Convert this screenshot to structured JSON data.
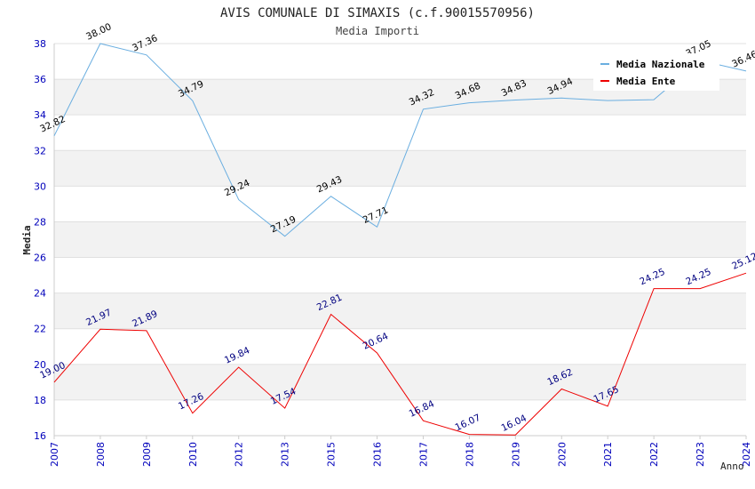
{
  "chart_data": {
    "type": "line",
    "title": "AVIS COMUNALE DI SIMAXIS (c.f.90015570956)",
    "subtitle": "Media Importi",
    "xlabel": "Anno",
    "ylabel": "Media",
    "ylim": [
      16,
      38
    ],
    "yticks": [
      "16",
      "18",
      "20",
      "22",
      "24",
      "26",
      "28",
      "30",
      "32",
      "34",
      "36",
      "38"
    ],
    "categories": [
      "2007",
      "2008",
      "2009",
      "2010",
      "2012",
      "2013",
      "2015",
      "2016",
      "2017",
      "2018",
      "2019",
      "2020",
      "2021",
      "2022",
      "2023",
      "2024"
    ],
    "series": [
      {
        "name": "Media Nazionale",
        "color": "#6aaee0",
        "label_color": "#000000",
        "values": [
          32.82,
          38.0,
          37.36,
          34.79,
          29.24,
          27.19,
          29.43,
          27.71,
          34.32,
          34.68,
          34.83,
          34.94,
          34.8,
          34.85,
          37.05,
          36.46
        ],
        "labels": [
          "32.82",
          "38.00",
          "37.36",
          "34.79",
          "29.24",
          "27.19",
          "29.43",
          "27.71",
          "34.32",
          "34.68",
          "34.83",
          "34.94",
          "",
          "",
          "37.05",
          "36.46"
        ]
      },
      {
        "name": "Media Ente",
        "color": "#ee0000",
        "label_color": "#000080",
        "values": [
          19.0,
          21.97,
          21.89,
          17.26,
          19.84,
          17.54,
          22.81,
          20.64,
          16.84,
          16.07,
          16.04,
          18.62,
          17.65,
          24.25,
          24.25,
          25.12
        ],
        "labels": [
          "19.00",
          "21.97",
          "21.89",
          "17.26",
          "19.84",
          "17.54",
          "22.81",
          "20.64",
          "16.84",
          "16.07",
          "16.04",
          "18.62",
          "17.65",
          "24.25",
          "24.25",
          "25.12"
        ]
      }
    ],
    "legend_position": "top-right",
    "grid": true
  }
}
